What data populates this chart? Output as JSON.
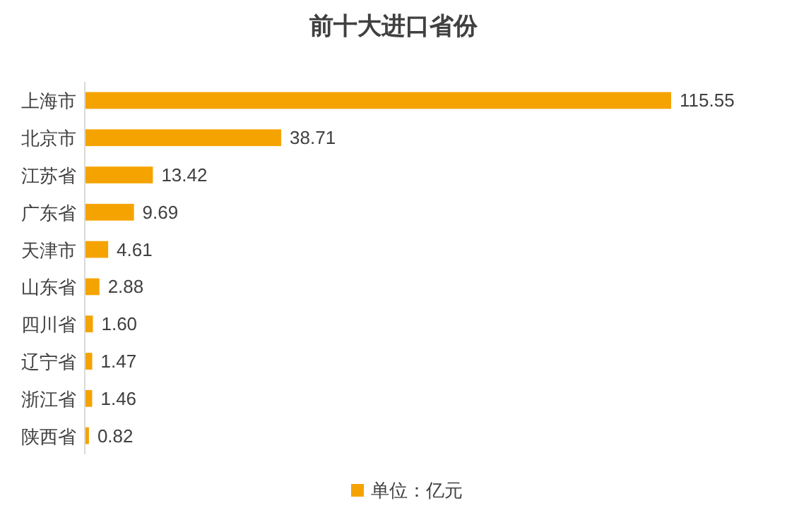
{
  "chart_data": {
    "type": "bar",
    "orientation": "horizontal",
    "title": "前十大进口省份",
    "categories": [
      "上海市",
      "北京市",
      "江苏省",
      "广东省",
      "天津市",
      "山东省",
      "四川省",
      "辽宁省",
      "浙江省",
      "陕西省"
    ],
    "series": [
      {
        "name": "单位：亿元",
        "color": "#f5a300",
        "values": [
          115.55,
          38.71,
          13.42,
          9.69,
          4.61,
          2.88,
          1.6,
          1.47,
          1.46,
          0.82
        ],
        "value_labels": [
          "115.55",
          "38.71",
          "13.42",
          "9.69",
          "4.61",
          "2.88",
          "1.60",
          "1.47",
          "1.46",
          "0.82"
        ]
      }
    ],
    "legend": "bottom"
  }
}
